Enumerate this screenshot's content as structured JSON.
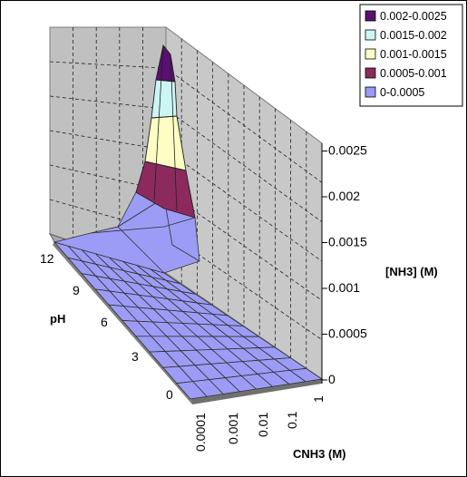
{
  "chart_data": {
    "type": "3d-surface",
    "xlabel": "CNH3 (M)",
    "ylabel": "pH",
    "zlabel": "[NH3] (M)",
    "x_ticks": [
      "0.0001",
      "0.001",
      "0.01",
      "0.1",
      "1"
    ],
    "y_ticks": [
      "0",
      "3",
      "6",
      "9",
      "12"
    ],
    "z_ticks": [
      "0",
      "0.0005",
      "0.001",
      "0.0015",
      "0.002",
      "0.0025"
    ],
    "zlim": [
      0,
      0.0025
    ],
    "grid": true,
    "legend_position": "top-right",
    "legend": [
      {
        "label": "0.002-0.0025",
        "color": "#5a1070"
      },
      {
        "label": "0.0015-0.002",
        "color": "#ccf5f5"
      },
      {
        "label": "0.001-0.0015",
        "color": "#fefec4"
      },
      {
        "label": "0.0005-0.001",
        "color": "#8c2a5e"
      },
      {
        "label": "0-0.0005",
        "color": "#9a9af6"
      }
    ]
  }
}
